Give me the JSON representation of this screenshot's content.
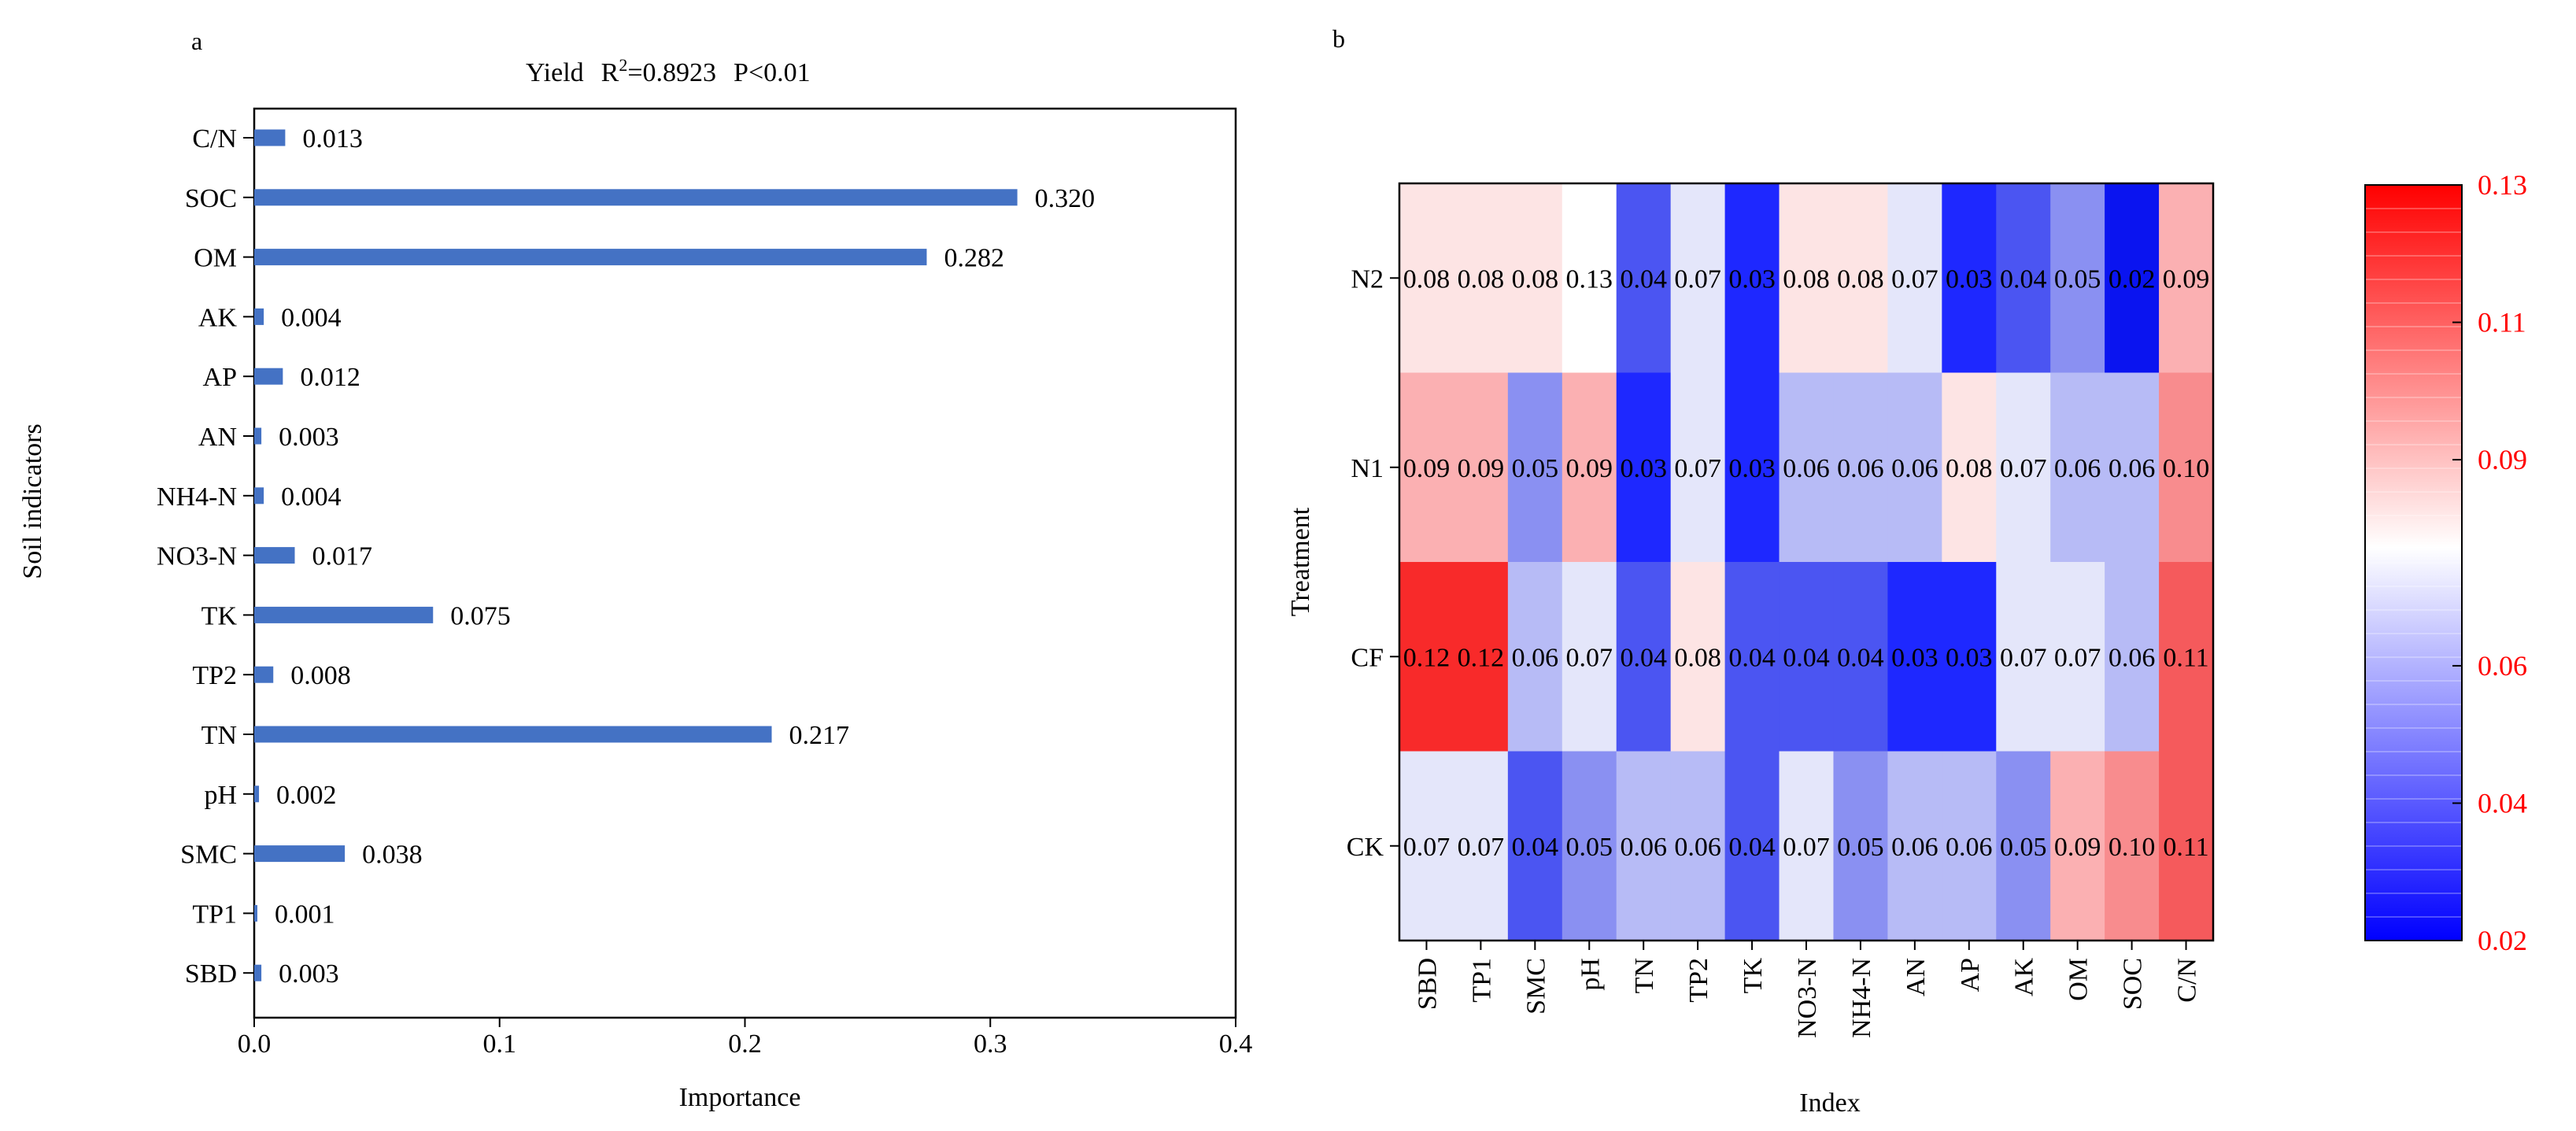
{
  "chart_data": [
    {
      "type": "bar",
      "orientation": "horizontal",
      "panel_label": "a",
      "title_prefix": "Yield",
      "title_r": "R",
      "title_sup": "2",
      "title_rest": "=0.8923",
      "title_p": "P<0.01",
      "xlabel": "Importance",
      "ylabel": "Soil indicators",
      "xlim": [
        0,
        0.4
      ],
      "xticks": [
        0,
        0.1,
        0.2,
        0.3,
        0.4
      ],
      "xtick_labels": [
        "0.0",
        "0.1",
        "0.2",
        "0.3",
        "0.4"
      ],
      "categories": [
        "C/N",
        "SOC",
        "OM",
        "AK",
        "AP",
        "AN",
        "NH4-N",
        "NO3-N",
        "TK",
        "TP2",
        "TN",
        "pH",
        "SMC",
        "TP1",
        "SBD"
      ],
      "values": [
        0.013,
        0.32,
        0.282,
        0.004,
        0.012,
        0.003,
        0.004,
        0.017,
        0.075,
        0.008,
        0.217,
        0.002,
        0.038,
        0.001,
        0.003
      ],
      "value_labels": [
        "0.013",
        "0.320",
        "0.282",
        "0.004",
        "0.012",
        "0.003",
        "0.004",
        "0.017",
        "0.075",
        "0.008",
        "0.217",
        "0.002",
        "0.038",
        "0.001",
        "0.003"
      ],
      "bar_color": "#4472c4"
    },
    {
      "type": "heatmap",
      "panel_label": "b",
      "xlabel": "Index",
      "ylabel": "Treatment",
      "columns": [
        "SBD",
        "TP1",
        "SMC",
        "pH",
        "TN",
        "TP2",
        "TK",
        "NO3-N",
        "NH4-N",
        "AN",
        "AP",
        "AK",
        "OM",
        "SOC",
        "C/N"
      ],
      "rows": [
        "N2",
        "N1",
        "CF",
        "CK"
      ],
      "values": [
        [
          0.08,
          0.08,
          0.08,
          0.13,
          0.04,
          0.07,
          0.03,
          0.08,
          0.08,
          0.07,
          0.03,
          0.04,
          0.05,
          0.02,
          0.09
        ],
        [
          0.09,
          0.09,
          0.05,
          0.09,
          0.03,
          0.07,
          0.03,
          0.06,
          0.06,
          0.06,
          0.08,
          0.07,
          0.06,
          0.06,
          0.1
        ],
        [
          0.12,
          0.12,
          0.06,
          0.07,
          0.04,
          0.08,
          0.04,
          0.04,
          0.04,
          0.03,
          0.03,
          0.07,
          0.07,
          0.06,
          0.11
        ],
        [
          0.07,
          0.07,
          0.04,
          0.05,
          0.06,
          0.06,
          0.04,
          0.07,
          0.05,
          0.06,
          0.06,
          0.05,
          0.09,
          0.1,
          0.11
        ]
      ],
      "cell_colors": [
        [
          "#fde4e4",
          "#fde4e4",
          "#fde4e4",
          "#ffffff",
          "#4b55f2",
          "#e4e6fa",
          "#1e28ff",
          "#fde4e4",
          "#fde4e4",
          "#e4e6fa",
          "#1e28ff",
          "#4b55f2",
          "#8a90f2",
          "#0a14f0",
          "#fbb0b2"
        ],
        [
          "#fbb0b2",
          "#fbb0b2",
          "#8a90f2",
          "#fbb0b2",
          "#1e28ff",
          "#e4e6fa",
          "#1e28ff",
          "#b7bbf6",
          "#b7bbf6",
          "#b7bbf6",
          "#fde4e4",
          "#e4e6fa",
          "#b7bbf6",
          "#b7bbf6",
          "#f88c8e"
        ],
        [
          "#f82a2a",
          "#f82a2a",
          "#b7bbf6",
          "#e4e6fa",
          "#4b55f2",
          "#fde4e4",
          "#4b55f2",
          "#4b55f2",
          "#4b55f2",
          "#1e28ff",
          "#1e28ff",
          "#e4e6fa",
          "#e4e6fa",
          "#b7bbf6",
          "#f55a5c"
        ],
        [
          "#e4e6fa",
          "#e4e6fa",
          "#4b55f2",
          "#8a90f2",
          "#b7bbf6",
          "#b7bbf6",
          "#4b55f2",
          "#e4e6fa",
          "#8a90f2",
          "#b7bbf6",
          "#b7bbf6",
          "#8a90f2",
          "#fbb0b2",
          "#f88c8e",
          "#f55a5c"
        ]
      ],
      "colorbar": {
        "range": [
          0.02,
          0.13
        ],
        "ticks": [
          0.02,
          0.04,
          0.06,
          0.09,
          0.11,
          0.13
        ],
        "tick_labels": [
          "0.02",
          "0.04",
          "0.06",
          "0.09",
          "0.11",
          "0.13"
        ],
        "label_color": "#ff0000",
        "low_color": "#0000ff",
        "mid_color": "#ffffff",
        "high_color": "#ff0000"
      }
    }
  ]
}
